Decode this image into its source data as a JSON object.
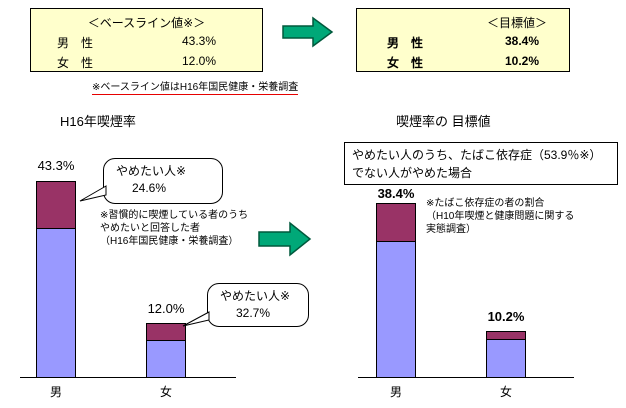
{
  "header": {
    "baseline_box": {
      "title": "＜ベースライン値※＞",
      "rows": [
        {
          "label": "男　性",
          "value": "43.3%"
        },
        {
          "label": "女　性",
          "value": "12.0%"
        }
      ]
    },
    "target_box": {
      "title": "＜目標値＞",
      "rows": [
        {
          "label": "男　性",
          "value": "38.4%"
        },
        {
          "label": "女　性",
          "value": "10.2%"
        }
      ]
    },
    "baseline_note": "※ベースライン値はH16年国民健康・栄養調査"
  },
  "left_chart": {
    "title": "H16年喫煙率",
    "bar_labels": [
      "43.3%",
      "12.0%"
    ],
    "categories": [
      "男",
      "女"
    ],
    "callouts": [
      {
        "line1": "やめたい人※",
        "line2": "24.6%"
      },
      {
        "line1": "やめたい人※",
        "line2": "32.7%"
      }
    ],
    "footnote_lines": [
      "※習慣的に喫煙している者のうち",
      "やめたいと回答した者",
      "（H16年国民健康・栄養調査）"
    ]
  },
  "right_chart": {
    "title": "喫煙率の 目標値",
    "condition_lines": [
      "やめたい人のうち、たばこ依存症（53.9％※）",
      "でない人がやめた場合"
    ],
    "bar_labels": [
      "38.4%",
      "10.2%"
    ],
    "categories": [
      "男",
      "女"
    ],
    "footnote_lines": [
      "※たばこ依存症の者の割合",
      "（H10年喫煙と健康問題に関する実態調査）"
    ]
  },
  "colors": {
    "box_bg": "#FFFFCC",
    "arrow_green": "#00A878",
    "bar_body": "#9999FF",
    "bar_top": "#993366",
    "note_underline": "#E60000"
  },
  "chart_data": [
    {
      "type": "bar",
      "title": "H16年喫煙率",
      "categories": [
        "男",
        "女"
      ],
      "values": [
        43.3,
        12.0
      ],
      "unit": "%",
      "bar_labels": [
        "43.3%",
        "12.0%"
      ],
      "annotations": [
        "やめたい人※ 24.6%",
        "やめたい人※ 32.7%",
        "※習慣的に喫煙している者のうちやめたいと回答した者（H16年国民健康・栄養調査）"
      ],
      "legend": "none",
      "axes": "baseline only, no y-axis shown"
    },
    {
      "type": "bar",
      "title": "喫煙率の 目標値",
      "categories": [
        "男",
        "女"
      ],
      "values": [
        38.4,
        10.2
      ],
      "unit": "%",
      "bar_labels": [
        "38.4%",
        "10.2%"
      ],
      "annotations": [
        "やめたい人のうち、たばこ依存症（53.9％※）でない人がやめた場合",
        "※たばこ依存症の者の割合（H10年喫煙と健康問題に関する実態調査）"
      ],
      "legend": "none",
      "axes": "baseline only, no y-axis shown"
    }
  ]
}
